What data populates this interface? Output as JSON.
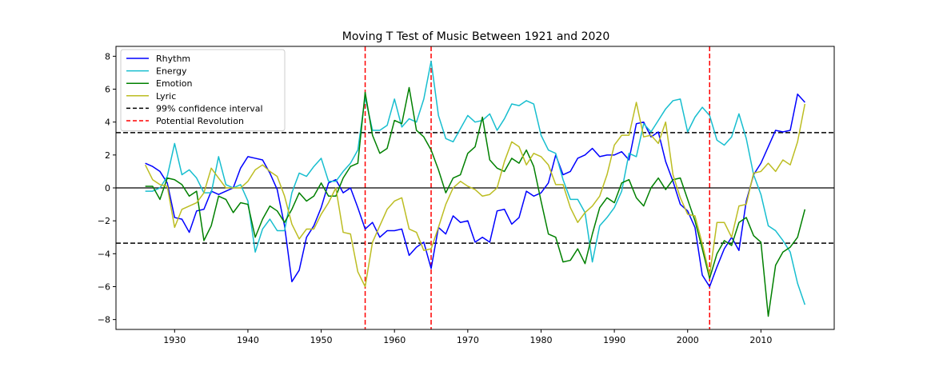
{
  "chart_data": {
    "type": "line",
    "title": "Moving T Test of Music Between 1921 and 2020",
    "xlabel": "",
    "ylabel": "",
    "xlim": [
      1922,
      2020
    ],
    "ylim": [
      -8.6,
      8.6
    ],
    "xticks": [
      1930,
      1940,
      1950,
      1960,
      1970,
      1980,
      1990,
      2000,
      2010
    ],
    "yticks": [
      -8,
      -6,
      -4,
      -2,
      0,
      2,
      4,
      6,
      8
    ],
    "grid": false,
    "legend": {
      "position": "top-left"
    },
    "x": [
      1926,
      1927,
      1928,
      1929,
      1930,
      1931,
      1932,
      1933,
      1934,
      1935,
      1936,
      1937,
      1938,
      1939,
      1940,
      1941,
      1942,
      1943,
      1944,
      1945,
      1946,
      1947,
      1948,
      1949,
      1950,
      1951,
      1952,
      1953,
      1954,
      1955,
      1956,
      1957,
      1958,
      1959,
      1960,
      1961,
      1962,
      1963,
      1964,
      1965,
      1966,
      1967,
      1968,
      1969,
      1970,
      1971,
      1972,
      1973,
      1974,
      1975,
      1976,
      1977,
      1978,
      1979,
      1980,
      1981,
      1982,
      1983,
      1984,
      1985,
      1986,
      1987,
      1988,
      1989,
      1990,
      1991,
      1992,
      1993,
      1994,
      1995,
      1996,
      1997,
      1998,
      1999,
      2000,
      2001,
      2002,
      2003,
      2004,
      2005,
      2006,
      2007,
      2008,
      2009,
      2010,
      2011,
      2012,
      2013,
      2014,
      2015,
      2016
    ],
    "series": [
      {
        "name": "Rhythm",
        "color": "#0000ff",
        "values": [
          1.5,
          1.3,
          1.0,
          0.3,
          -1.8,
          -1.9,
          -2.7,
          -1.4,
          -1.3,
          -0.2,
          -0.4,
          -0.2,
          0.0,
          1.2,
          1.9,
          1.8,
          1.7,
          0.9,
          -0.1,
          -2.3,
          -5.7,
          -5.0,
          -3.0,
          -2.3,
          -1.2,
          0.3,
          0.5,
          -0.3,
          0.0,
          -1.2,
          -2.5,
          -2.1,
          -3.0,
          -2.6,
          -2.6,
          -2.5,
          -4.1,
          -3.6,
          -3.3,
          -4.9,
          -2.4,
          -2.8,
          -1.7,
          -2.1,
          -2.0,
          -3.3,
          -3.0,
          -3.3,
          -1.4,
          -1.3,
          -2.2,
          -1.8,
          -0.2,
          -0.5,
          -0.3,
          0.3,
          2.0,
          0.8,
          1.0,
          1.8,
          2.0,
          2.4,
          1.9,
          2.0,
          2.0,
          2.2,
          1.7,
          3.9,
          4.0,
          3.1,
          3.4,
          1.6,
          0.4,
          -1.0,
          -1.4,
          -2.4,
          -5.3,
          -6.0,
          -4.8,
          -3.7,
          -3.0,
          -3.8,
          -0.8,
          0.8,
          1.5,
          2.5,
          3.5,
          3.4,
          3.5,
          5.7,
          5.2
        ]
      },
      {
        "name": "Energy",
        "color": "#17becf",
        "values": [
          -0.2,
          -0.2,
          0.0,
          0.7,
          2.7,
          0.8,
          1.1,
          0.6,
          -0.3,
          -0.3,
          1.9,
          0.2,
          0.0,
          0.2,
          -0.8,
          -3.9,
          -2.5,
          -1.9,
          -2.6,
          -2.6,
          -0.3,
          0.9,
          0.7,
          1.3,
          1.8,
          0.4,
          0.4,
          1.0,
          1.5,
          2.3,
          5.5,
          3.5,
          3.5,
          3.8,
          5.4,
          3.7,
          4.2,
          4.0,
          5.4,
          7.7,
          4.4,
          3.0,
          2.8,
          3.6,
          4.4,
          4.0,
          4.1,
          4.5,
          3.5,
          4.2,
          5.1,
          5.0,
          5.3,
          5.1,
          3.2,
          2.3,
          2.1,
          0.5,
          -0.7,
          -0.7,
          -1.5,
          -4.5,
          -2.3,
          -1.8,
          -1.2,
          -0.2,
          2.1,
          1.9,
          3.9,
          3.4,
          4.1,
          4.8,
          5.3,
          5.4,
          3.4,
          4.3,
          4.9,
          4.4,
          2.9,
          2.6,
          3.1,
          4.5,
          3.0,
          0.8,
          -0.4,
          -2.3,
          -2.6,
          -3.2,
          -3.9,
          -5.8,
          -7.1
        ]
      },
      {
        "name": "Emotion",
        "color": "#008000",
        "values": [
          0.1,
          0.1,
          -0.7,
          0.6,
          0.5,
          0.2,
          -0.5,
          -0.2,
          -3.2,
          -2.3,
          -0.5,
          -0.7,
          -1.5,
          -0.9,
          -1.0,
          -3.0,
          -1.9,
          -1.1,
          -1.4,
          -2.1,
          -1.3,
          -0.3,
          -0.8,
          -0.5,
          0.3,
          -0.5,
          -0.5,
          0.6,
          1.3,
          1.5,
          5.8,
          3.2,
          2.1,
          2.4,
          4.1,
          3.9,
          6.1,
          3.5,
          3.1,
          2.3,
          1.1,
          -0.3,
          0.6,
          0.8,
          2.1,
          2.5,
          4.3,
          1.7,
          1.2,
          1.0,
          1.8,
          1.5,
          2.3,
          1.3,
          -0.8,
          -2.8,
          -3.0,
          -4.5,
          -4.4,
          -3.7,
          -4.6,
          -2.8,
          -1.2,
          -0.6,
          -0.9,
          0.3,
          0.5,
          -0.6,
          -1.1,
          0.0,
          0.6,
          -0.1,
          0.5,
          0.6,
          -0.7,
          -2.0,
          -3.7,
          -5.5,
          -4.0,
          -3.2,
          -3.5,
          -2.1,
          -1.8,
          -2.9,
          -3.3,
          -7.8,
          -4.7,
          -3.9,
          -3.6,
          -3.0,
          -1.3
        ]
      },
      {
        "name": "Lyric",
        "color": "#bcbd22",
        "values": [
          1.4,
          0.5,
          0.2,
          0.1,
          -2.4,
          -1.3,
          -1.1,
          -0.9,
          -0.3,
          1.2,
          0.6,
          0.0,
          0.0,
          0.0,
          0.4,
          1.1,
          1.4,
          1.0,
          0.7,
          -0.5,
          -2.2,
          -3.1,
          -2.5,
          -2.5,
          -1.6,
          -0.9,
          0.0,
          -2.7,
          -2.8,
          -5.1,
          -6.0,
          -3.3,
          -2.3,
          -1.3,
          -0.8,
          -0.6,
          -2.5,
          -2.7,
          -3.8,
          -3.7,
          -2.4,
          -1.0,
          0.0,
          0.4,
          0.1,
          -0.1,
          -0.5,
          -0.4,
          0.0,
          1.6,
          2.8,
          2.5,
          1.4,
          2.1,
          1.9,
          1.4,
          0.2,
          0.2,
          -1.2,
          -2.1,
          -1.5,
          -1.1,
          -0.5,
          0.8,
          2.6,
          3.2,
          3.2,
          5.2,
          3.1,
          3.2,
          2.7,
          4.0,
          0.8,
          -0.6,
          -1.6,
          -1.7,
          -3.4,
          -5.3,
          -2.1,
          -2.1,
          -3.0,
          -1.1,
          -1.0,
          0.9,
          1.0,
          1.5,
          1.0,
          1.7,
          1.4,
          2.8,
          5.1
        ]
      }
    ],
    "reference_lines": [
      {
        "name": "99% confidence interval",
        "orientation": "horizontal",
        "values": [
          3.36,
          -3.36
        ],
        "color": "#000000",
        "style": "dashed"
      },
      {
        "name": "Potential Revolution",
        "orientation": "vertical",
        "values": [
          1956,
          1965,
          2003
        ],
        "color": "#ff0000",
        "style": "dashed"
      },
      {
        "name": "",
        "orientation": "horizontal",
        "values": [
          0
        ],
        "color": "#000000",
        "style": "solid"
      }
    ]
  }
}
